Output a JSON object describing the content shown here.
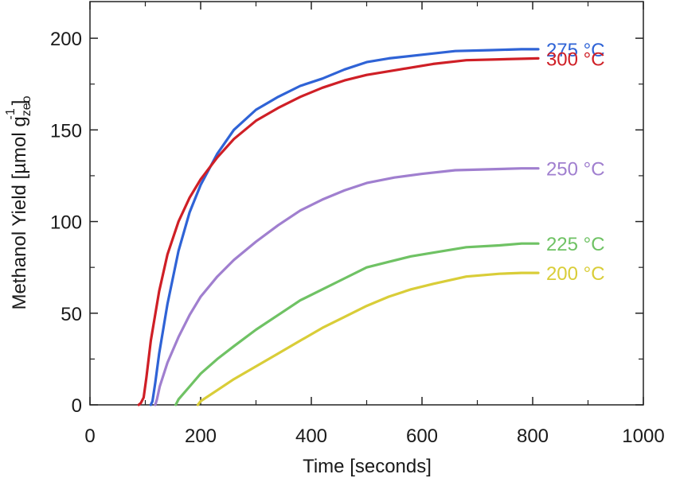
{
  "chart_data": {
    "type": "line",
    "xlabel": "Time [seconds]",
    "ylabel": {
      "main": "Methanol Yield [µmol g",
      "sub": "zeo",
      "sup": "-1",
      "close": "]"
    },
    "xlim": [
      0,
      1000
    ],
    "ylim": [
      0,
      220
    ],
    "xticks": [
      0,
      200,
      400,
      600,
      800,
      1000
    ],
    "yticks": [
      0,
      50,
      100,
      150,
      200
    ],
    "grid": false,
    "legend": "inline labels at line ends (right)",
    "series": [
      {
        "name": "275 °C",
        "color": "#2f63d6",
        "points": [
          [
            110,
            0
          ],
          [
            113,
            2
          ],
          [
            118,
            12
          ],
          [
            125,
            28
          ],
          [
            140,
            55
          ],
          [
            160,
            84
          ],
          [
            180,
            105
          ],
          [
            200,
            120
          ],
          [
            230,
            137
          ],
          [
            260,
            150
          ],
          [
            300,
            161
          ],
          [
            340,
            168
          ],
          [
            380,
            174
          ],
          [
            420,
            178
          ],
          [
            460,
            183
          ],
          [
            500,
            187
          ],
          [
            540,
            189
          ],
          [
            600,
            191
          ],
          [
            660,
            193
          ],
          [
            720,
            193.5
          ],
          [
            780,
            194
          ],
          [
            810,
            194
          ]
        ]
      },
      {
        "name": "300 °C",
        "color": "#cf1f26",
        "points": [
          [
            88,
            0
          ],
          [
            92,
            1
          ],
          [
            97,
            4
          ],
          [
            102,
            15
          ],
          [
            110,
            35
          ],
          [
            125,
            62
          ],
          [
            140,
            82
          ],
          [
            160,
            100
          ],
          [
            180,
            113
          ],
          [
            200,
            123
          ],
          [
            230,
            135
          ],
          [
            260,
            145
          ],
          [
            300,
            155
          ],
          [
            340,
            162
          ],
          [
            380,
            168
          ],
          [
            420,
            173
          ],
          [
            460,
            177
          ],
          [
            500,
            180
          ],
          [
            560,
            183
          ],
          [
            620,
            186
          ],
          [
            680,
            188
          ],
          [
            740,
            188.5
          ],
          [
            810,
            189
          ]
        ]
      },
      {
        "name": "250 °C",
        "color": "#a07fcf",
        "points": [
          [
            118,
            0
          ],
          [
            121,
            3
          ],
          [
            126,
            10
          ],
          [
            140,
            23
          ],
          [
            160,
            37
          ],
          [
            180,
            49
          ],
          [
            200,
            59
          ],
          [
            230,
            70
          ],
          [
            260,
            79
          ],
          [
            300,
            89
          ],
          [
            340,
            98
          ],
          [
            380,
            106
          ],
          [
            420,
            112
          ],
          [
            460,
            117
          ],
          [
            500,
            121
          ],
          [
            550,
            124
          ],
          [
            600,
            126
          ],
          [
            660,
            128
          ],
          [
            720,
            128.5
          ],
          [
            780,
            129
          ],
          [
            810,
            129
          ]
        ]
      },
      {
        "name": "225 °C",
        "color": "#6fc264",
        "points": [
          [
            155,
            0
          ],
          [
            160,
            3
          ],
          [
            180,
            10
          ],
          [
            200,
            17
          ],
          [
            230,
            25
          ],
          [
            260,
            32
          ],
          [
            300,
            41
          ],
          [
            340,
            49
          ],
          [
            380,
            57
          ],
          [
            420,
            63
          ],
          [
            460,
            69
          ],
          [
            500,
            75
          ],
          [
            540,
            78
          ],
          [
            580,
            81
          ],
          [
            620,
            83
          ],
          [
            680,
            86
          ],
          [
            740,
            87
          ],
          [
            780,
            88
          ],
          [
            810,
            88
          ]
        ]
      },
      {
        "name": "200 °C",
        "color": "#d9cd38",
        "points": [
          [
            195,
            0
          ],
          [
            200,
            2
          ],
          [
            230,
            8
          ],
          [
            260,
            14
          ],
          [
            300,
            21
          ],
          [
            340,
            28
          ],
          [
            380,
            35
          ],
          [
            420,
            42
          ],
          [
            460,
            48
          ],
          [
            500,
            54
          ],
          [
            540,
            59
          ],
          [
            580,
            63
          ],
          [
            620,
            66
          ],
          [
            680,
            70
          ],
          [
            740,
            71.5
          ],
          [
            780,
            72
          ],
          [
            810,
            72
          ]
        ]
      }
    ]
  }
}
